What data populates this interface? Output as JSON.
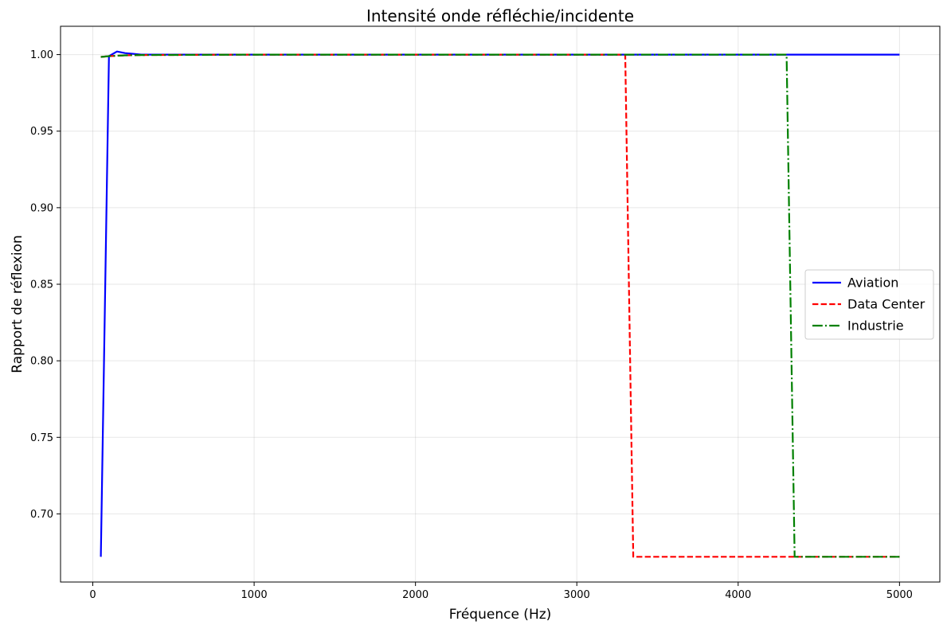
{
  "chart_data": {
    "type": "line",
    "title": "Intensité onde réfléchie/incidente",
    "xlabel": "Fréquence (Hz)",
    "ylabel": "Rapport de réflexion",
    "xlim": [
      -200,
      5250
    ],
    "ylim": [
      0.6555,
      1.0185
    ],
    "xticks": [
      0,
      1000,
      2000,
      3000,
      4000,
      5000
    ],
    "yticks": [
      0.7,
      0.75,
      0.8,
      0.85,
      0.9,
      0.95,
      1.0
    ],
    "grid": true,
    "legend_position": "center-right",
    "series": [
      {
        "name": "Aviation",
        "color": "#0000ff",
        "style": "solid",
        "x": [
          50,
          100,
          150,
          200,
          250,
          300,
          400,
          500,
          1000,
          2000,
          3000,
          4000,
          5000
        ],
        "y": [
          0.672,
          0.999,
          1.002,
          1.001,
          1.0005,
          1.0,
          1.0,
          1.0,
          1.0,
          1.0,
          1.0,
          1.0,
          1.0
        ]
      },
      {
        "name": "Data Center",
        "color": "#ff0000",
        "style": "dashed",
        "x": [
          50,
          100,
          200,
          300,
          500,
          1000,
          2000,
          3000,
          3300,
          3350,
          4000,
          5000
        ],
        "y": [
          0.9985,
          0.999,
          0.9995,
          0.9997,
          0.9998,
          1.0,
          1.0,
          1.0,
          1.0,
          0.672,
          0.672,
          0.672
        ]
      },
      {
        "name": "Industrie",
        "color": "#008000",
        "style": "dashdot",
        "x": [
          50,
          100,
          200,
          300,
          500,
          1000,
          2000,
          3000,
          4000,
          4300,
          4350,
          5000
        ],
        "y": [
          0.9985,
          0.999,
          0.9995,
          0.9997,
          0.9998,
          1.0,
          1.0,
          1.0,
          1.0,
          1.0,
          0.672,
          0.672
        ]
      }
    ]
  }
}
